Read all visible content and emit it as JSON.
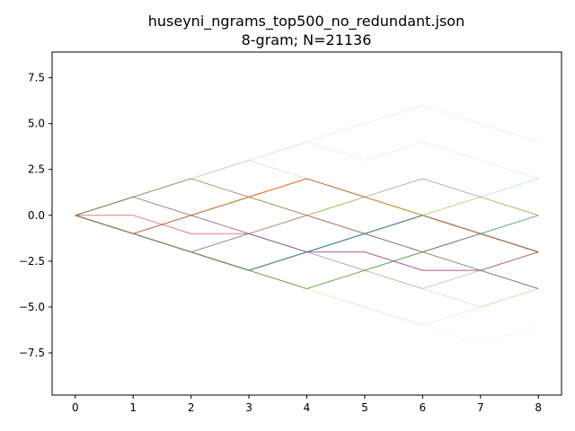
{
  "chart_data": {
    "type": "line",
    "title": "huseyni_ngrams_top500_no_redundant.json",
    "subtitle": "8-gram; N=21136",
    "xlabel": "",
    "ylabel": "",
    "xlim": [
      -0.4,
      8.4
    ],
    "ylim": [
      -9.8,
      8.9
    ],
    "x_ticks": [
      0,
      1,
      2,
      3,
      4,
      5,
      6,
      7,
      8
    ],
    "y_ticks": [
      -7.5,
      -5.0,
      -2.5,
      0.0,
      2.5,
      5.0,
      7.5
    ],
    "y_tick_labels": [
      "−7.5",
      "−5.0",
      "−2.5",
      "0.0",
      "2.5",
      "5.0",
      "7.5"
    ],
    "grid": false,
    "legend": "none",
    "x": [
      0,
      1,
      2,
      3,
      4,
      5,
      6,
      7,
      8
    ],
    "series": [
      {
        "values": [
          0,
          -1,
          -2,
          -3,
          -2,
          -1,
          0,
          -1,
          -2
        ],
        "color": "#1f77b4",
        "opacity": 0.95,
        "width": 1.2
      },
      {
        "values": [
          0,
          -1,
          0,
          1,
          2,
          1,
          0,
          -1,
          -2
        ],
        "color": "#e8743b",
        "opacity": 0.95,
        "width": 1.2
      },
      {
        "values": [
          0,
          -1,
          -2,
          -3,
          -4,
          -3,
          -2,
          -1,
          0
        ],
        "color": "#2ca02c",
        "opacity": 0.7,
        "width": 1.0
      },
      {
        "values": [
          0,
          0,
          -1,
          -1,
          -2,
          -2,
          -3,
          -3,
          -2
        ],
        "color": "#d62728",
        "opacity": 0.6,
        "width": 1.0
      },
      {
        "values": [
          0,
          -1,
          -2,
          -1,
          -2,
          -2,
          -3,
          -3,
          -4
        ],
        "color": "#9467bd",
        "opacity": 0.7,
        "width": 1.0
      },
      {
        "values": [
          0,
          1,
          2,
          1,
          0,
          -1,
          -2,
          -1,
          -2
        ],
        "color": "#8c564b",
        "opacity": 0.6,
        "width": 1.0
      },
      {
        "values": [
          0,
          1,
          0,
          -1,
          0,
          1,
          2,
          1,
          0
        ],
        "color": "#7f7f7f",
        "opacity": 0.45,
        "width": 0.9
      },
      {
        "values": [
          0,
          -1,
          -2,
          -1,
          0,
          1,
          0,
          1,
          0
        ],
        "color": "#bcbd22",
        "opacity": 0.55,
        "width": 0.9
      },
      {
        "values": [
          0,
          -1,
          -2,
          -3,
          -4,
          -5,
          -6,
          -5,
          -4
        ],
        "color": "#ff7f0e",
        "opacity": 0.2,
        "width": 0.8
      },
      {
        "values": [
          0,
          1,
          2,
          3,
          4,
          5,
          6,
          5,
          4
        ],
        "color": "#d62728",
        "opacity": 0.12,
        "width": 0.8
      },
      {
        "values": [
          0,
          1,
          2,
          3,
          4,
          3,
          4,
          3,
          2
        ],
        "color": "#e377c2",
        "opacity": 0.2,
        "width": 0.8
      },
      {
        "values": [
          0,
          -1,
          -2,
          -1,
          0,
          -1,
          -2,
          -3,
          -4
        ],
        "color": "#9467bd",
        "opacity": 0.3,
        "width": 0.8
      },
      {
        "values": [
          0,
          -1,
          0,
          -1,
          -2,
          -1,
          -2,
          -3,
          -4
        ],
        "color": "#8c564b",
        "opacity": 0.35,
        "width": 0.8
      },
      {
        "values": [
          0,
          1,
          0,
          1,
          0,
          -1,
          -2,
          -3,
          -2
        ],
        "color": "#2ca02c",
        "opacity": 0.3,
        "width": 0.8
      },
      {
        "values": [
          0,
          -1,
          -2,
          -3,
          -2,
          -3,
          -4,
          -3,
          -2
        ],
        "color": "#7f7f7f",
        "opacity": 0.3,
        "width": 0.8
      },
      {
        "values": [
          0,
          1,
          2,
          1,
          0,
          1,
          2,
          1,
          2
        ],
        "color": "#7f7f7f",
        "opacity": 0.25,
        "width": 0.8
      },
      {
        "values": [
          0,
          1,
          0,
          -1,
          -2,
          -1,
          0,
          -1,
          -2
        ],
        "color": "#17becf",
        "opacity": 0.3,
        "width": 0.8
      },
      {
        "values": [
          0,
          -1,
          -2,
          -3,
          -4,
          -3,
          -2,
          -3,
          -4
        ],
        "color": "#2ca02c",
        "opacity": 0.25,
        "width": 0.8
      },
      {
        "values": [
          0,
          -1,
          -2,
          -3,
          -2,
          -1,
          -2,
          -1,
          0
        ],
        "color": "#1f77b4",
        "opacity": 0.2,
        "width": 0.8
      },
      {
        "values": [
          0,
          1,
          2,
          1,
          0,
          1,
          0,
          -1,
          -2
        ],
        "color": "#bcbd22",
        "opacity": 0.25,
        "width": 0.8
      },
      {
        "values": [
          0,
          -1,
          -2,
          -3,
          -4,
          -5,
          -6,
          -7,
          -6
        ],
        "color": "#9467bd",
        "opacity": 0.1,
        "width": 0.8
      },
      {
        "values": [
          0,
          -1,
          0,
          -1,
          0,
          -1,
          -2,
          -1,
          -2
        ],
        "color": "#e377c2",
        "opacity": 0.2,
        "width": 0.8
      },
      {
        "values": [
          0,
          -1,
          -2,
          -3,
          -2,
          -3,
          -2,
          -3,
          -2
        ],
        "color": "#8c564b",
        "opacity": 0.25,
        "width": 0.8
      },
      {
        "values": [
          0,
          -1,
          -2,
          -1,
          -2,
          -3,
          -4,
          -3,
          -4
        ],
        "color": "#7f7f7f",
        "opacity": 0.25,
        "width": 0.8
      },
      {
        "values": [
          0,
          1,
          0,
          -1,
          0,
          -1,
          0,
          -1,
          -2
        ],
        "color": "#d62728",
        "opacity": 0.25,
        "width": 0.8
      },
      {
        "values": [
          0,
          1,
          2,
          3,
          2,
          1,
          0,
          1,
          2
        ],
        "color": "#17becf",
        "opacity": 0.15,
        "width": 0.8
      },
      {
        "values": [
          0,
          -1,
          -2,
          -3,
          -2,
          -1,
          0,
          1,
          0
        ],
        "color": "#bcbd22",
        "opacity": 0.2,
        "width": 0.8
      },
      {
        "values": [
          0,
          1,
          0,
          -1,
          -2,
          -3,
          -4,
          -5,
          -4
        ],
        "color": "#8c564b",
        "opacity": 0.15,
        "width": 0.8
      },
      {
        "values": [
          0,
          -1,
          -2,
          -3,
          -4,
          -3,
          -4,
          -5,
          -4
        ],
        "color": "#ff7f0e",
        "opacity": 0.15,
        "width": 0.8
      },
      {
        "values": [
          0,
          1,
          2,
          3,
          2,
          1,
          2,
          1,
          0
        ],
        "color": "#2ca02c",
        "opacity": 0.15,
        "width": 0.8
      }
    ]
  }
}
